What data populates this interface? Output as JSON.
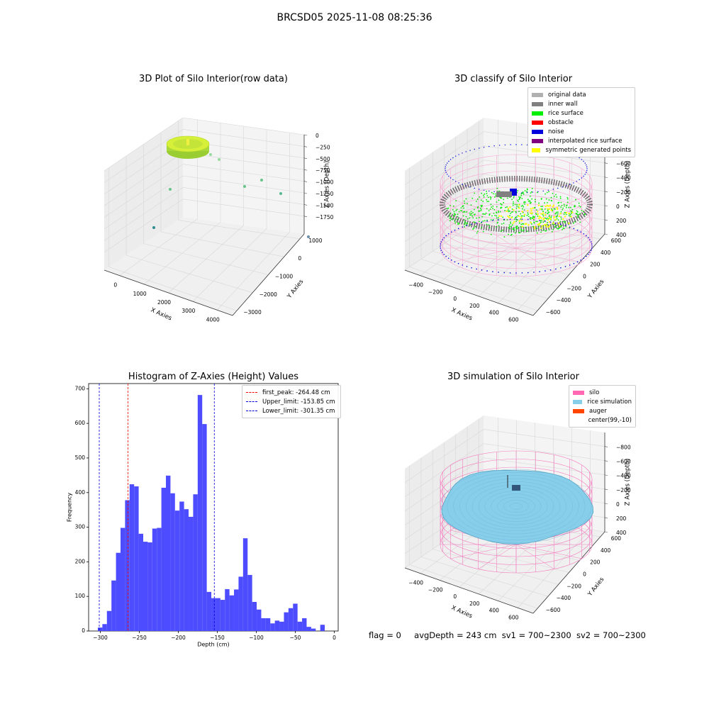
{
  "suptitle": "BRCSD05 2025-11-08 08:25:36",
  "status": {
    "flag": "flag = 0",
    "avg_depth": "avgDepth = 243 cm",
    "sv1": "sv1 = 700~2300",
    "sv2": "sv2 = 700~2300"
  },
  "colors": {
    "rice_surface": "#00ee00",
    "noise": "#0000dd",
    "inner_wall": "#808080",
    "obstacle": "#ff0000",
    "interpolated": "#800080",
    "symmetric": "#ffff00",
    "silo": "#ff69b4",
    "rice_simulation": "#87ceeb",
    "auger": "#ff4500",
    "hist_bar": "#4d4dff"
  },
  "chart_data": [
    {
      "type": "scatter",
      "title": "3D Plot of Silo Interior(row data)",
      "xlabel": "X Axies",
      "ylabel": "Y Axies",
      "zlabel": "Z Axies (Depth)",
      "x_ticks": [
        "0",
        "1000",
        "2000",
        "3000",
        "4000"
      ],
      "y_ticks": [
        "1000",
        "0",
        "−1000",
        "−2000",
        "−3000"
      ],
      "z_ticks": [
        "0",
        "−250",
        "−500",
        "−750",
        "−1000",
        "−1250",
        "−1500",
        "−1750"
      ]
    },
    {
      "type": "scatter",
      "title": "3D classify of Silo Interior",
      "xlabel": "X Axies",
      "ylabel": "Y Axies",
      "zlabel": "Z Axies (Depth)",
      "x_ticks": [
        "−400",
        "−200",
        "0",
        "200",
        "400",
        "600"
      ],
      "y_ticks": [
        "600",
        "400",
        "200",
        "0",
        "−200",
        "−400",
        "−600"
      ],
      "z_ticks": [
        "400",
        "200",
        "0",
        "−200",
        "−400",
        "−600",
        "−800"
      ],
      "legend": [
        "original data",
        "inner wall",
        "rice surface",
        "obstacle",
        "noise",
        "interpolated rice surface",
        "symmetric generated points"
      ]
    },
    {
      "type": "bar",
      "title": "Histogram of Z-Axies (Height) Values",
      "xlabel": "Depth (cm)",
      "ylabel": "Frequency",
      "xlim": [
        -315,
        5
      ],
      "ylim": [
        0,
        715
      ],
      "x_ticks": [
        -300,
        -250,
        -200,
        -150,
        -100,
        -50,
        0
      ],
      "y_ticks": [
        0,
        100,
        200,
        300,
        400,
        500,
        600,
        700
      ],
      "bin_start": -303.2,
      "bin_width": 5.82,
      "values": [
        10,
        20,
        58,
        146,
        226,
        298,
        378,
        424,
        418,
        281,
        258,
        256,
        296,
        298,
        414,
        449,
        398,
        348,
        374,
        352,
        330,
        395,
        682,
        598,
        113,
        95,
        95,
        90,
        121,
        103,
        120,
        157,
        268,
        162,
        84,
        62,
        37,
        37,
        22,
        30,
        27,
        54,
        66,
        79,
        27,
        37,
        12,
        7,
        0,
        18
      ],
      "lines": [
        {
          "label": "first_peak: -264.48 cm",
          "x": -264.48,
          "color": "#ff0000"
        },
        {
          "label": "Upper_limit: -153.85 cm",
          "x": -153.85,
          "color": "#0000dd"
        },
        {
          "label": "Lower_limit: -301.35 cm",
          "x": -301.35,
          "color": "#0000dd"
        }
      ]
    },
    {
      "type": "scatter",
      "title": "3D simulation of Silo Interior",
      "xlabel": "X Axies",
      "ylabel": "Y Axies",
      "zlabel": "Z Axies (Depth)",
      "x_ticks": [
        "−400",
        "−200",
        "0",
        "200",
        "400",
        "600"
      ],
      "y_ticks": [
        "600",
        "400",
        "200",
        "0",
        "−200",
        "−400",
        "−600"
      ],
      "z_ticks": [
        "400",
        "200",
        "0",
        "−200",
        "−400",
        "−600",
        "−800"
      ],
      "legend": [
        "silo",
        "rice simulation",
        "auger",
        "center(99,-10)"
      ]
    }
  ]
}
